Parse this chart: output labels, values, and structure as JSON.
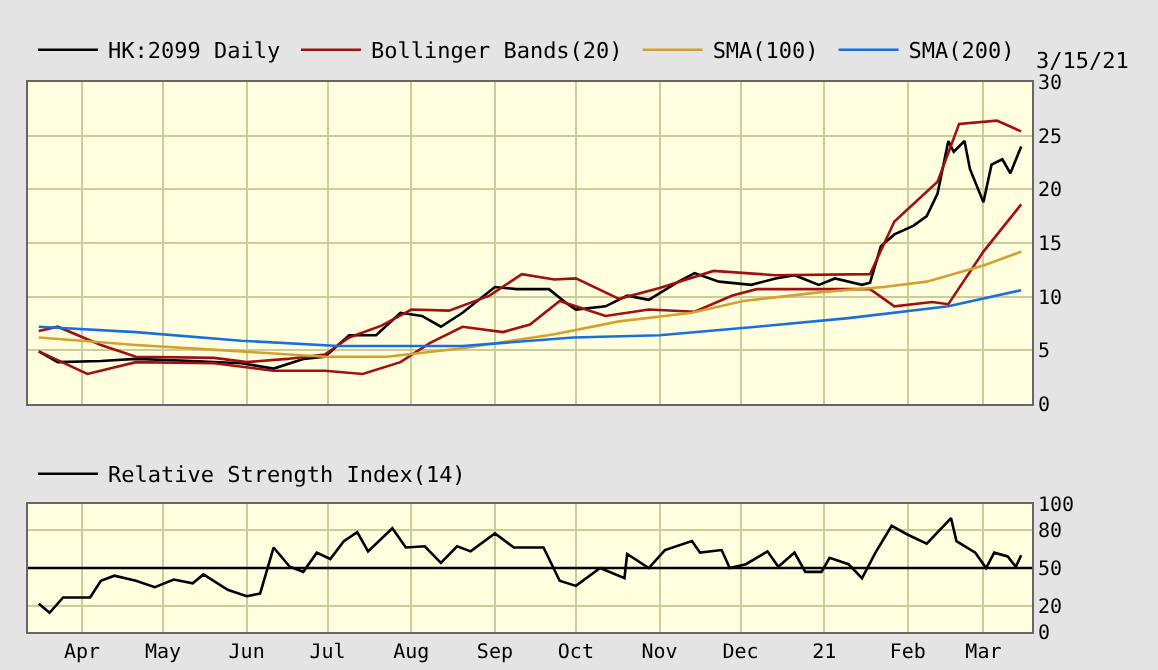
{
  "chart_data": [
    {
      "type": "line",
      "annotations": [
        "3/15/21"
      ],
      "legend": "top",
      "grid": true,
      "tick_labels": "y",
      "xlim": [
        "2020-03-12",
        "2021-03-19"
      ],
      "ylim": [
        0,
        30
      ],
      "yticks": [
        0,
        5,
        10,
        15,
        20,
        25,
        30
      ],
      "xticks": [
        {
          "value": "2020-04-01",
          "label": null
        },
        {
          "value": "2020-05-01",
          "label": null
        },
        {
          "value": "2020-06-01",
          "label": null
        },
        {
          "value": "2020-07-01",
          "label": null
        },
        {
          "value": "2020-08-01",
          "label": null
        },
        {
          "value": "2020-09-01",
          "label": null
        },
        {
          "value": "2020-10-01",
          "label": null
        },
        {
          "value": "2020-11-01",
          "label": null
        },
        {
          "value": "2020-12-01",
          "label": null
        },
        {
          "value": "2021-01-01",
          "label": null
        },
        {
          "value": "2021-02-01",
          "label": null
        },
        {
          "value": "2021-03-01",
          "label": null
        }
      ],
      "series": [
        {
          "name": "HK:2099 Daily",
          "color": "#000000",
          "x": [
            "2020-03-16",
            "2020-03-23",
            "2020-04-08",
            "2020-04-21",
            "2020-05-12",
            "2020-05-30",
            "2020-06-11",
            "2020-06-22",
            "2020-06-30",
            "2020-07-09",
            "2020-07-19",
            "2020-07-28",
            "2020-08-05",
            "2020-08-12",
            "2020-08-20",
            "2020-09-01",
            "2020-09-09",
            "2020-09-21",
            "2020-09-28",
            "2020-10-01",
            "2020-10-12",
            "2020-10-20",
            "2020-10-28",
            "2020-11-08",
            "2020-11-14",
            "2020-11-23",
            "2020-12-05",
            "2020-12-14",
            "2020-12-21",
            "2020-12-30",
            "2021-01-05",
            "2021-01-15",
            "2021-01-18",
            "2021-01-22",
            "2021-01-27",
            "2021-02-03",
            "2021-02-08",
            "2021-02-12",
            "2021-02-16",
            "2021-02-18",
            "2021-02-22",
            "2021-02-24",
            "2021-03-01",
            "2021-03-04",
            "2021-03-08",
            "2021-03-11",
            "2021-03-15"
          ],
          "values": [
            4.9,
            3.9,
            4.0,
            4.2,
            4.0,
            3.8,
            3.3,
            4.2,
            4.4,
            6.4,
            6.4,
            8.5,
            8.2,
            7.2,
            8.5,
            10.9,
            10.7,
            10.7,
            9.3,
            8.8,
            9.1,
            10.1,
            9.7,
            11.4,
            12.2,
            11.4,
            11.1,
            11.7,
            12.0,
            11.1,
            11.7,
            11.1,
            11.3,
            14.7,
            15.8,
            16.6,
            17.5,
            19.6,
            24.5,
            23.5,
            24.5,
            21.9,
            18.8,
            22.3,
            22.8,
            21.5,
            24.0
          ]
        },
        {
          "name": "Bollinger Bands(20)",
          "color": "#a01010",
          "x": [
            "2020-03-16",
            "2020-03-23",
            "2020-04-08",
            "2020-04-21",
            "2020-05-20",
            "2020-06-01",
            "2020-06-16",
            "2020-06-30",
            "2020-07-09",
            "2020-07-21",
            "2020-08-01",
            "2020-08-15",
            "2020-08-30",
            "2020-09-11",
            "2020-09-23",
            "2020-10-01",
            "2020-10-17",
            "2020-11-01",
            "2020-11-21",
            "2020-12-14",
            "2021-01-18",
            "2021-01-27",
            "2021-02-12",
            "2021-02-20",
            "2021-03-06",
            "2021-03-15"
          ],
          "values": [
            6.8,
            7.2,
            5.5,
            4.4,
            4.3,
            3.9,
            4.2,
            4.6,
            6.2,
            7.3,
            8.8,
            8.7,
            10.1,
            12.1,
            11.6,
            11.7,
            9.8,
            10.8,
            12.4,
            12.0,
            12.1,
            17.0,
            20.7,
            26.1,
            26.4,
            25.4
          ]
        },
        {
          "color": "#a01010",
          "x": [
            "2020-03-16",
            "2020-04-03",
            "2020-04-21",
            "2020-05-20",
            "2020-06-11",
            "2020-06-30",
            "2020-07-14",
            "2020-07-28",
            "2020-08-08",
            "2020-08-20",
            "2020-09-04",
            "2020-09-14",
            "2020-09-25",
            "2020-10-12",
            "2020-10-28",
            "2020-11-14",
            "2020-11-28",
            "2020-12-07",
            "2020-12-21",
            "2021-01-18",
            "2021-01-27",
            "2021-02-10",
            "2021-02-16",
            "2021-03-01",
            "2021-03-15"
          ],
          "values": [
            4.9,
            2.8,
            3.9,
            3.8,
            3.1,
            3.1,
            2.8,
            3.9,
            5.7,
            7.2,
            6.7,
            7.4,
            9.6,
            8.2,
            8.8,
            8.6,
            10.1,
            10.7,
            10.7,
            10.7,
            9.1,
            9.5,
            9.3,
            14.2,
            18.6
          ]
        },
        {
          "name": "SMA(100)",
          "color": "#d4a030",
          "x": [
            "2020-03-16",
            "2020-04-21",
            "2020-05-30",
            "2020-06-30",
            "2020-07-23",
            "2020-08-20",
            "2020-09-23",
            "2020-10-17",
            "2020-11-13",
            "2020-12-02",
            "2020-12-30",
            "2021-01-23",
            "2021-02-08",
            "2021-03-01",
            "2021-03-15"
          ],
          "values": [
            6.2,
            5.5,
            4.9,
            4.4,
            4.4,
            5.2,
            6.5,
            7.7,
            8.5,
            9.6,
            10.4,
            10.9,
            11.4,
            12.9,
            14.2
          ]
        },
        {
          "name": "SMA(200)",
          "color": "#1a6fe0",
          "x": [
            "2020-03-16",
            "2020-04-21",
            "2020-05-30",
            "2020-07-05",
            "2020-08-20",
            "2020-09-30",
            "2020-11-01",
            "2020-12-07",
            "2021-01-10",
            "2021-02-16",
            "2021-03-15"
          ],
          "values": [
            7.2,
            6.7,
            5.9,
            5.4,
            5.4,
            6.2,
            6.4,
            7.2,
            8.0,
            9.1,
            10.6
          ]
        }
      ]
    },
    {
      "type": "line",
      "legend": "top",
      "grid": true,
      "xlim": [
        "2020-03-12",
        "2021-03-19"
      ],
      "ylim": [
        0,
        100
      ],
      "yticks": [
        0,
        20,
        50,
        80,
        100
      ],
      "xticks": [
        {
          "value": "2020-04-01",
          "label": "Apr"
        },
        {
          "value": "2020-05-01",
          "label": "May"
        },
        {
          "value": "2020-06-01",
          "label": "Jun"
        },
        {
          "value": "2020-07-01",
          "label": "Jul"
        },
        {
          "value": "2020-08-01",
          "label": "Aug"
        },
        {
          "value": "2020-09-01",
          "label": "Sep"
        },
        {
          "value": "2020-10-01",
          "label": "Oct"
        },
        {
          "value": "2020-11-01",
          "label": "Nov"
        },
        {
          "value": "2020-12-01",
          "label": "Dec"
        },
        {
          "value": "2021-01-01",
          "label": "21"
        },
        {
          "value": "2021-02-01",
          "label": "Feb"
        },
        {
          "value": "2021-03-01",
          "label": "Mar"
        }
      ],
      "ref_lines": [
        {
          "axis": "y",
          "value": 50,
          "color": "#000000"
        }
      ],
      "series": [
        {
          "name": "Relative Strength Index(14)",
          "color": "#000000",
          "x": [
            "2020-03-16",
            "2020-03-20",
            "2020-03-25",
            "2020-04-04",
            "2020-04-08",
            "2020-04-13",
            "2020-04-21",
            "2020-04-28",
            "2020-05-05",
            "2020-05-12",
            "2020-05-16",
            "2020-05-25",
            "2020-06-01",
            "2020-06-06",
            "2020-06-11",
            "2020-06-17",
            "2020-06-22",
            "2020-06-27",
            "2020-07-02",
            "2020-07-07",
            "2020-07-12",
            "2020-07-16",
            "2020-07-25",
            "2020-07-30",
            "2020-08-06",
            "2020-08-12",
            "2020-08-18",
            "2020-08-23",
            "2020-09-01",
            "2020-09-08",
            "2020-09-19",
            "2020-09-25",
            "2020-10-01",
            "2020-10-10",
            "2020-10-19",
            "2020-10-20",
            "2020-10-28",
            "2020-11-03",
            "2020-11-13",
            "2020-11-16",
            "2020-11-24",
            "2020-11-27",
            "2020-12-03",
            "2020-12-11",
            "2020-12-15",
            "2020-12-21",
            "2020-12-25",
            "2020-12-31",
            "2021-01-03",
            "2021-01-10",
            "2021-01-15",
            "2021-01-20",
            "2021-01-26",
            "2021-02-01",
            "2021-02-08",
            "2021-02-17",
            "2021-02-19",
            "2021-02-26",
            "2021-03-02",
            "2021-03-05",
            "2021-03-10",
            "2021-03-13",
            "2021-03-15"
          ],
          "values": [
            22,
            15,
            27,
            27,
            40,
            44,
            40,
            35,
            41,
            38,
            45,
            33,
            28,
            30,
            66,
            51,
            47,
            62,
            57,
            71,
            78,
            63,
            81,
            66,
            67,
            54,
            67,
            63,
            77,
            66,
            66,
            40,
            36,
            50,
            42,
            61,
            50,
            64,
            71,
            62,
            64,
            50,
            53,
            63,
            51,
            62,
            47,
            47,
            58,
            53,
            42,
            62,
            83,
            76,
            69,
            89,
            71,
            62,
            50,
            62,
            59,
            51,
            60
          ]
        }
      ]
    }
  ]
}
